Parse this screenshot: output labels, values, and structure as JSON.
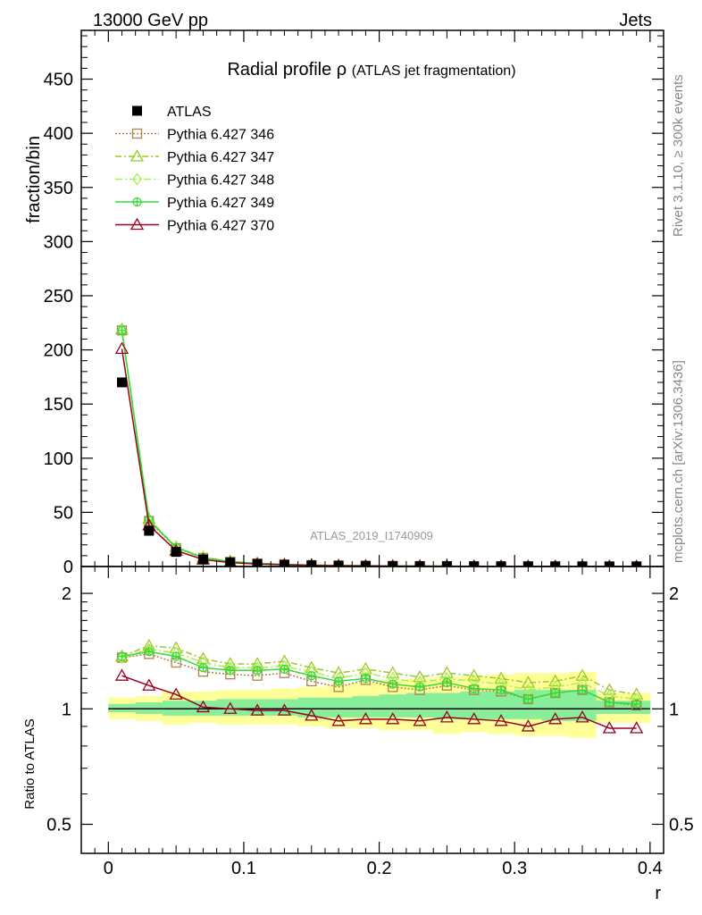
{
  "header": {
    "left": "13000 GeV pp",
    "right": "Jets"
  },
  "side": {
    "rivet": "Rivet 3.1.10, ≥ 300k events",
    "mcplots": "mcplots.cern.ch [arXiv:1306.3436]"
  },
  "analysis_id": "ATLAS_2019_I1740909",
  "colors": {
    "atlas": "#000000",
    "p346": "#b0814f",
    "p347": "#99cc22",
    "p348": "#aaee55",
    "p349": "#33dd33",
    "p370": "#990022",
    "band_yellow": "#ffff99",
    "band_green": "#88ee99"
  },
  "chart_data": [
    {
      "type": "scatter",
      "title": "Radial profile",
      "title_symbol": "ρ",
      "title_suffix": "(ATLAS jet fragmentation)",
      "ylabel": "fraction/bin",
      "xlim": [
        -0.02,
        0.41
      ],
      "ylim": [
        0,
        495
      ],
      "yticks": [
        0,
        50,
        100,
        150,
        200,
        250,
        300,
        350,
        400,
        450
      ],
      "ytick_labels": [
        "0",
        "50",
        "100",
        "150",
        "200",
        "250",
        "300",
        "350",
        "400",
        "450"
      ],
      "legend_position": "top-left",
      "x": [
        0.01,
        0.03,
        0.05,
        0.07,
        0.09,
        0.11,
        0.13,
        0.15,
        0.17,
        0.19,
        0.21,
        0.23,
        0.25,
        0.27,
        0.29,
        0.31,
        0.33,
        0.35,
        0.37,
        0.39
      ],
      "series": [
        {
          "name": "ATLAS",
          "key": "atlas",
          "marker": "square-filled",
          "values": [
            170,
            33,
            13.5,
            6.5,
            3.6,
            2.3,
            1.6,
            1.1,
            0.8,
            0.6,
            0.45,
            0.35,
            0.28,
            0.22,
            0.18,
            0.15,
            0.12,
            0.1,
            0.08,
            0.07
          ]
        },
        {
          "name": "Pythia 6.427 346",
          "key": "p346",
          "marker": "square-open",
          "dash": "2,2",
          "values": [
            218,
            42,
            17,
            8,
            4.4,
            2.8,
            2.0,
            1.3,
            0.9,
            0.7,
            0.5,
            0.4,
            0.33,
            0.25,
            0.2,
            0.16,
            0.13,
            0.11,
            0.09,
            0.07
          ]
        },
        {
          "name": "Pythia 6.427 347",
          "key": "p347",
          "marker": "triangle-open",
          "dash": "7,3,2,3",
          "values": [
            219,
            44,
            18,
            8.6,
            4.7,
            3.0,
            2.1,
            1.4,
            1.0,
            0.75,
            0.55,
            0.42,
            0.35,
            0.27,
            0.21,
            0.17,
            0.14,
            0.12,
            0.09,
            0.08
          ]
        },
        {
          "name": "Pythia 6.427 348",
          "key": "p348",
          "marker": "diamond-open",
          "dash": "8,3,2,3",
          "values": [
            218,
            43.5,
            17.8,
            8.5,
            4.6,
            2.95,
            2.05,
            1.38,
            0.98,
            0.73,
            0.54,
            0.41,
            0.34,
            0.26,
            0.2,
            0.16,
            0.13,
            0.11,
            0.09,
            0.07
          ]
        },
        {
          "name": "Pythia 6.427 349",
          "key": "p349",
          "marker": "circle-plus",
          "dash": "",
          "values": [
            218,
            43,
            17.5,
            8.3,
            4.5,
            2.9,
            2.0,
            1.35,
            0.95,
            0.71,
            0.52,
            0.4,
            0.33,
            0.25,
            0.2,
            0.16,
            0.13,
            0.11,
            0.09,
            0.07
          ]
        },
        {
          "name": "Pythia 6.427 370",
          "key": "p370",
          "marker": "triangle-open",
          "dash": "",
          "values": [
            201,
            38,
            14.7,
            6.5,
            3.6,
            2.3,
            1.6,
            1.05,
            0.75,
            0.57,
            0.43,
            0.33,
            0.27,
            0.21,
            0.17,
            0.14,
            0.11,
            0.1,
            0.07,
            0.06
          ]
        }
      ]
    },
    {
      "type": "scatter",
      "ylabel": "Ratio to ATLAS",
      "xlabel": "r",
      "xlim": [
        -0.02,
        0.41
      ],
      "ylim": [
        0.42,
        2.35
      ],
      "ylog": true,
      "yticks": [
        0.5,
        1,
        2
      ],
      "ytick_labels": [
        "0.5",
        "1",
        "2"
      ],
      "xticks": [
        0,
        0.1,
        0.2,
        0.3,
        0.4
      ],
      "xtick_labels": [
        "0",
        "0.1",
        "0.2",
        "0.3",
        "0.4"
      ],
      "x": [
        0.01,
        0.03,
        0.05,
        0.07,
        0.09,
        0.11,
        0.13,
        0.15,
        0.17,
        0.19,
        0.21,
        0.23,
        0.25,
        0.27,
        0.29,
        0.31,
        0.33,
        0.35,
        0.37,
        0.39
      ],
      "band_yellow_lo": [
        0.94,
        0.93,
        0.91,
        0.92,
        0.91,
        0.91,
        0.91,
        0.9,
        0.89,
        0.89,
        0.88,
        0.88,
        0.86,
        0.87,
        0.86,
        0.85,
        0.85,
        0.84,
        0.92,
        0.92
      ],
      "band_yellow_hi": [
        1.07,
        1.08,
        1.11,
        1.11,
        1.12,
        1.12,
        1.13,
        1.14,
        1.16,
        1.17,
        1.19,
        1.2,
        1.21,
        1.22,
        1.23,
        1.24,
        1.24,
        1.25,
        1.1,
        1.1
      ],
      "band_green_lo": [
        0.98,
        0.97,
        0.96,
        0.96,
        0.96,
        0.96,
        0.96,
        0.95,
        0.95,
        0.95,
        0.95,
        0.95,
        0.94,
        0.94,
        0.94,
        0.94,
        0.93,
        0.93,
        0.97,
        0.97
      ],
      "band_green_hi": [
        1.03,
        1.04,
        1.05,
        1.05,
        1.06,
        1.06,
        1.06,
        1.07,
        1.07,
        1.08,
        1.09,
        1.1,
        1.1,
        1.11,
        1.11,
        1.12,
        1.12,
        1.12,
        1.05,
        1.05
      ],
      "series": [
        {
          "key": "p346",
          "marker": "square-open",
          "dash": "2,2",
          "values": [
            1.36,
            1.39,
            1.32,
            1.25,
            1.23,
            1.22,
            1.24,
            1.18,
            1.14,
            1.19,
            1.14,
            1.12,
            1.15,
            1.12,
            1.11,
            1.06,
            1.1,
            1.12,
            1.04,
            1.02
          ]
        },
        {
          "key": "p347",
          "marker": "triangle-open",
          "dash": "7,3,2,3",
          "values": [
            1.37,
            1.46,
            1.44,
            1.35,
            1.31,
            1.31,
            1.33,
            1.28,
            1.24,
            1.27,
            1.24,
            1.21,
            1.24,
            1.22,
            1.2,
            1.17,
            1.18,
            1.22,
            1.12,
            1.09
          ]
        },
        {
          "key": "p348",
          "marker": "diamond-open",
          "dash": "8,3,2,3",
          "values": [
            1.36,
            1.43,
            1.4,
            1.32,
            1.28,
            1.28,
            1.29,
            1.25,
            1.2,
            1.24,
            1.2,
            1.17,
            1.2,
            1.18,
            1.16,
            1.12,
            1.14,
            1.17,
            1.08,
            1.06
          ]
        },
        {
          "key": "p349",
          "marker": "circle-plus",
          "dash": "",
          "values": [
            1.37,
            1.41,
            1.37,
            1.28,
            1.26,
            1.26,
            1.27,
            1.22,
            1.18,
            1.2,
            1.16,
            1.14,
            1.17,
            1.13,
            1.12,
            1.06,
            1.1,
            1.12,
            1.04,
            1.03
          ]
        },
        {
          "key": "p370",
          "marker": "triangle-open",
          "dash": "",
          "values": [
            1.22,
            1.15,
            1.09,
            1.01,
            1.0,
            0.99,
            0.99,
            0.96,
            0.93,
            0.94,
            0.94,
            0.93,
            0.95,
            0.94,
            0.93,
            0.9,
            0.94,
            0.95,
            0.89,
            0.89
          ]
        }
      ]
    }
  ]
}
